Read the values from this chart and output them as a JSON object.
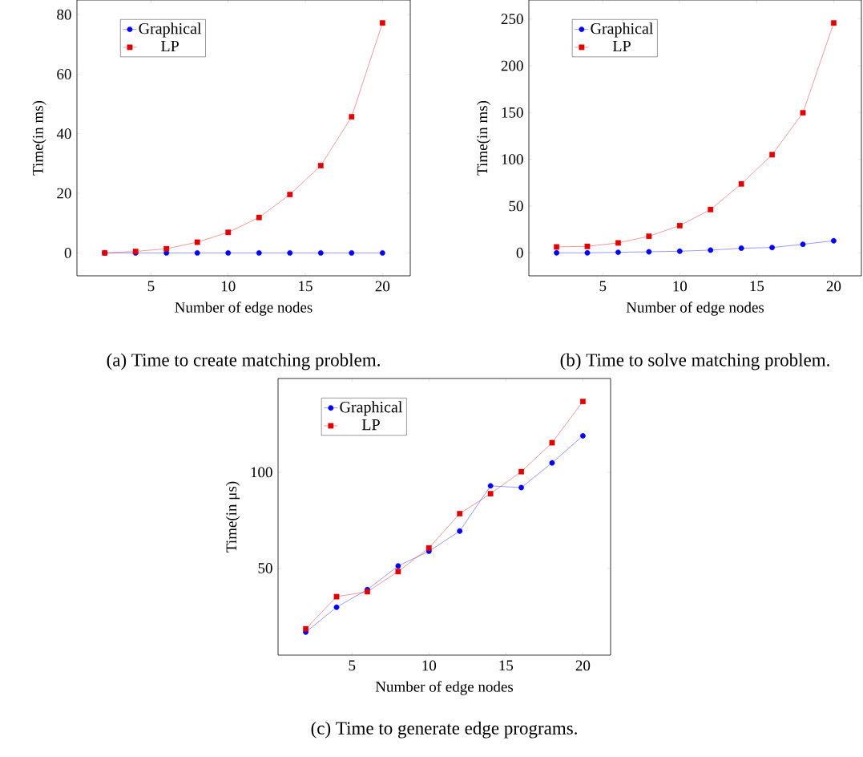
{
  "chart_data": [
    {
      "type": "line",
      "x": [
        2,
        4,
        6,
        8,
        10,
        12,
        14,
        16,
        18,
        20
      ],
      "xlim": [
        0.2,
        21.8
      ],
      "xticks": [
        5,
        10,
        15,
        20
      ],
      "ylim": [
        -7.7,
        84.9
      ],
      "yticks": [
        0,
        20,
        40,
        60,
        80
      ],
      "xlabel": "Number of edge nodes",
      "ylabel": "Time(in ms)",
      "legend": "top left",
      "annotations": [
        "(a) Time to create matching problem."
      ],
      "series": [
        {
          "name": "Graphical",
          "color": "#0000ff",
          "marker": "circle",
          "values": [
            0,
            0,
            0,
            0,
            0,
            0,
            0,
            0,
            0,
            0
          ]
        },
        {
          "name": "LP",
          "color": "#e00000",
          "marker": "square",
          "values": [
            0,
            0.5,
            1.4,
            3.6,
            6.9,
            11.9,
            19.6,
            29.3,
            45.7,
            77.2
          ]
        }
      ]
    },
    {
      "type": "line",
      "x": [
        2,
        4,
        6,
        8,
        10,
        12,
        14,
        16,
        18,
        20
      ],
      "xlim": [
        0.2,
        21.8
      ],
      "xticks": [
        5,
        10,
        15,
        20
      ],
      "ylim": [
        -24.6,
        270.3
      ],
      "yticks": [
        0,
        50,
        100,
        150,
        200,
        250
      ],
      "xlabel": "Number of edge nodes",
      "ylabel": "Time(in ms)",
      "legend": "top left",
      "annotations": [
        "(b) Time to solve matching problem."
      ],
      "series": [
        {
          "name": "Graphical",
          "color": "#0000ff",
          "marker": "circle",
          "values": [
            0,
            0,
            0.6,
            1.1,
            1.7,
            2.9,
            4.9,
            5.7,
            9.1,
            12.9
          ]
        },
        {
          "name": "LP",
          "color": "#e00000",
          "marker": "square",
          "values": [
            6.3,
            6.9,
            10.6,
            17.7,
            29.1,
            46.3,
            73.7,
            104.9,
            149.7,
            245.7
          ]
        }
      ]
    },
    {
      "type": "line",
      "x": [
        2,
        4,
        6,
        8,
        10,
        12,
        14,
        16,
        18,
        20
      ],
      "xlim": [
        0.2,
        21.8
      ],
      "xticks": [
        5,
        10,
        15,
        20
      ],
      "ylim": [
        4.6,
        148.9
      ],
      "yticks": [
        50,
        100
      ],
      "xlabel": "Number of edge nodes",
      "ylabel": "Time(in μs)",
      "legend": "top left",
      "annotations": [
        "(c) Time to generate edge programs."
      ],
      "series": [
        {
          "name": "Graphical",
          "color": "#0000ff",
          "marker": "circle",
          "values": [
            16.6,
            29.6,
            38.8,
            51.1,
            58.8,
            69.3,
            92.9,
            92.0,
            104.9,
            119.0
          ]
        },
        {
          "name": "LP",
          "color": "#e00000",
          "marker": "square",
          "values": [
            18.3,
            35.1,
            37.7,
            48.2,
            60.5,
            78.4,
            88.8,
            100.3,
            115.4,
            136.9
          ]
        }
      ]
    }
  ]
}
